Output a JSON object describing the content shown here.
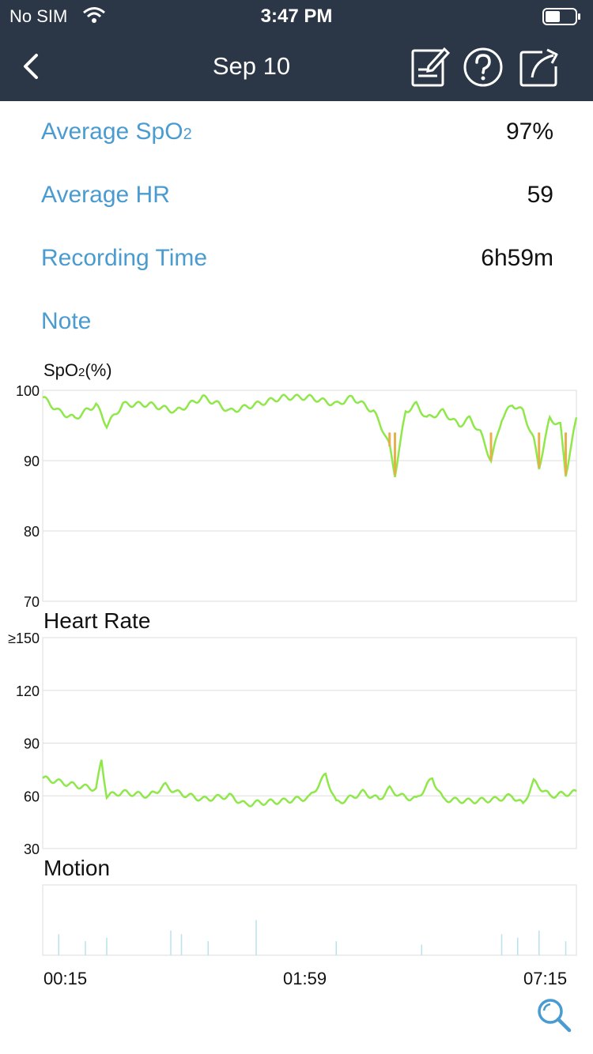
{
  "status_bar": {
    "carrier": "No SIM",
    "time": "3:47 PM"
  },
  "header": {
    "title": "Sep 10"
  },
  "summary": {
    "spo2": {
      "label": "Average SpO",
      "label_sub": "2",
      "value": "97%"
    },
    "hr": {
      "label": "Average HR",
      "value": "59"
    },
    "recording": {
      "label": "Recording Time",
      "value": "6h59m"
    },
    "note": {
      "label": "Note"
    }
  },
  "icons": {
    "back": "chevron-left-icon",
    "note": "note-edit-icon",
    "help": "help-circle-icon",
    "share": "share-icon",
    "zoom": "magnifier-icon"
  },
  "colors": {
    "header_bg": "#2b3747",
    "label_blue": "#4a9bd0",
    "line_green": "#8fe84a",
    "low_orange": "#e8b04a",
    "motion": "#b9e3ec"
  },
  "chart_data": [
    {
      "type": "line",
      "title": "SpO",
      "title_sub": "2",
      "title_suffix": "(%)",
      "ylim": [
        70,
        100
      ],
      "yticks": [
        "100",
        "90",
        "80",
        "70"
      ],
      "x_time_range": [
        "00:15",
        "07:15"
      ],
      "series": [
        {
          "points": [
            [
              0,
              99
            ],
            [
              0.03,
              97
            ],
            [
              0.06,
              96
            ],
            [
              0.1,
              98
            ],
            [
              0.12,
              95
            ],
            [
              0.15,
              98
            ],
            [
              0.2,
              98
            ],
            [
              0.25,
              97
            ],
            [
              0.3,
              99
            ],
            [
              0.33,
              98
            ],
            [
              0.35,
              97
            ],
            [
              0.4,
              98
            ],
            [
              0.45,
              99
            ],
            [
              0.5,
              99
            ],
            [
              0.55,
              98
            ],
            [
              0.58,
              99
            ],
            [
              0.6,
              98
            ],
            [
              0.62,
              97
            ],
            [
              0.64,
              94
            ],
            [
              0.65,
              92
            ],
            [
              0.66,
              88
            ],
            [
              0.68,
              97
            ],
            [
              0.7,
              98
            ],
            [
              0.72,
              96
            ],
            [
              0.75,
              97
            ],
            [
              0.78,
              95
            ],
            [
              0.8,
              96
            ],
            [
              0.82,
              94
            ],
            [
              0.84,
              90
            ],
            [
              0.86,
              96
            ],
            [
              0.88,
              98
            ],
            [
              0.9,
              97
            ],
            [
              0.92,
              93
            ],
            [
              0.93,
              89
            ],
            [
              0.95,
              96
            ],
            [
              0.97,
              95
            ],
            [
              0.98,
              88
            ],
            [
              1.0,
              96
            ]
          ]
        }
      ]
    },
    {
      "type": "line",
      "title": "Heart Rate",
      "ylim": [
        30,
        150
      ],
      "yticks": [
        "≥150",
        "120",
        "90",
        "60",
        "30"
      ],
      "series": [
        {
          "points": [
            [
              0,
              70
            ],
            [
              0.03,
              68
            ],
            [
              0.06,
              66
            ],
            [
              0.1,
              64
            ],
            [
              0.11,
              80
            ],
            [
              0.12,
              60
            ],
            [
              0.15,
              62
            ],
            [
              0.2,
              60
            ],
            [
              0.23,
              66
            ],
            [
              0.25,
              62
            ],
            [
              0.3,
              58
            ],
            [
              0.35,
              60
            ],
            [
              0.38,
              55
            ],
            [
              0.4,
              56
            ],
            [
              0.45,
              57
            ],
            [
              0.5,
              59
            ],
            [
              0.53,
              72
            ],
            [
              0.55,
              56
            ],
            [
              0.57,
              58
            ],
            [
              0.6,
              62
            ],
            [
              0.63,
              58
            ],
            [
              0.65,
              64
            ],
            [
              0.67,
              60
            ],
            [
              0.7,
              58
            ],
            [
              0.73,
              70
            ],
            [
              0.75,
              58
            ],
            [
              0.8,
              57
            ],
            [
              0.85,
              58
            ],
            [
              0.88,
              60
            ],
            [
              0.9,
              55
            ],
            [
              0.92,
              68
            ],
            [
              0.95,
              60
            ],
            [
              1.0,
              62
            ]
          ]
        }
      ]
    },
    {
      "type": "bar",
      "title": "Motion",
      "series": [
        {
          "points": [
            [
              0.03,
              0.3
            ],
            [
              0.08,
              0.2
            ],
            [
              0.12,
              0.25
            ],
            [
              0.24,
              0.35
            ],
            [
              0.26,
              0.3
            ],
            [
              0.31,
              0.2
            ],
            [
              0.4,
              0.5
            ],
            [
              0.55,
              0.2
            ],
            [
              0.71,
              0.15
            ],
            [
              0.86,
              0.3
            ],
            [
              0.89,
              0.25
            ],
            [
              0.93,
              0.35
            ],
            [
              0.98,
              0.2
            ]
          ]
        }
      ]
    }
  ],
  "x_axis": {
    "ticks": [
      "00:15",
      "01:59",
      "07:15"
    ]
  }
}
